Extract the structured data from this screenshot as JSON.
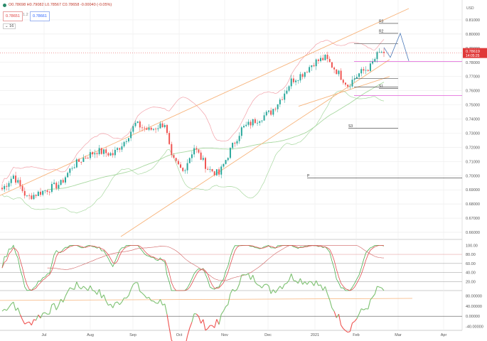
{
  "header": {
    "ohlc": "O0.78698 H0.79082 L0.78567 C0.78658 -0.00040 (-0.05%)",
    "bid_box": "0.78651",
    "spread_label": "1.2",
    "ask_box": "0.78661",
    "indicator_toggle": "16",
    "currency": "USD"
  },
  "colors": {
    "bull": "#26a69a",
    "bear": "#ef5350",
    "channel": "#f7b37a",
    "envelope": "#f2a0a8",
    "ma": "#a8d8a0",
    "magenta": "#e05cd8",
    "projection": "#4a78b8",
    "current_price": "#e03a3a",
    "stoch_k": "#4caf50",
    "stoch_d": "#e05050",
    "osc": "#7cc070"
  },
  "chart_data": [
    {
      "type": "candlestick",
      "y_ticks": [
        "0.81000",
        "0.80000",
        "0.79000",
        "0.78000",
        "0.77000",
        "0.76000",
        "0.75000",
        "0.74000",
        "0.73000",
        "0.72000",
        "0.71000",
        "0.70000",
        "0.69000",
        "0.68000",
        "0.67000",
        "0.66000"
      ],
      "x_ticks": [
        "Jul",
        "Aug",
        "Sep",
        "Oct",
        "Nov",
        "Dec",
        "2021",
        "Feb",
        "Mar",
        "Apr"
      ],
      "ylim": [
        0.655,
        0.818
      ],
      "current_price": "0.78619",
      "current_time": "14:05:25",
      "candle_period_sessions": 170,
      "last_close": 0.78658,
      "pivot_levels": [
        {
          "label": "R3",
          "value": 0.8075
        },
        {
          "label": "R2",
          "value": 0.8005
        },
        {
          "label": "S1",
          "value": 0.7615
        },
        {
          "label": "S3",
          "value": 0.7335
        },
        {
          "label": "P",
          "value": 0.6985
        }
      ],
      "key_levels": [
        0.7932,
        0.7807,
        0.7685,
        0.7625,
        0.7565
      ]
    },
    {
      "type": "line",
      "name": "stochastic",
      "y_ticks": [
        "100.00",
        "80.00",
        "60.00",
        "40.00",
        "20.00"
      ],
      "ylim": [
        0,
        110
      ]
    },
    {
      "type": "line",
      "name": "oscillator",
      "y_ticks": [
        "80.00000",
        "40.00000",
        "0.00000",
        "-40.00000"
      ],
      "ylim": [
        -55,
        95
      ]
    }
  ]
}
